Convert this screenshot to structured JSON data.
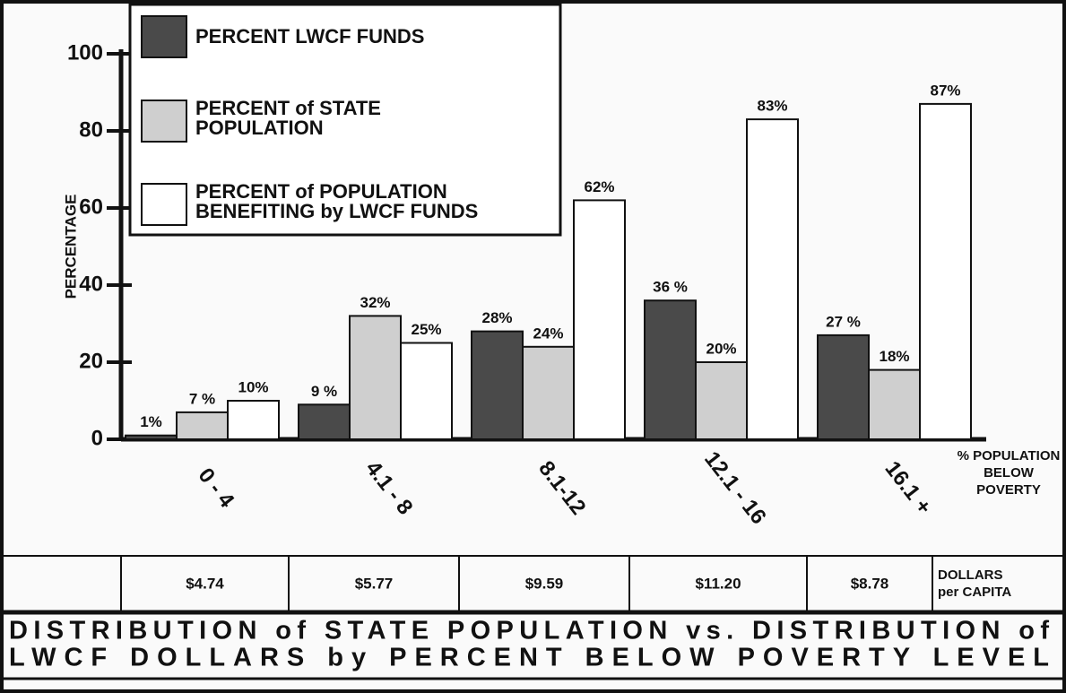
{
  "chart_data": {
    "type": "bar",
    "title": [
      "DISTRIBUTION of STATE POPULATION vs. DISTRIBUTION of",
      "LWCF DOLLARS by PERCENT BELOW POVERTY LEVEL"
    ],
    "y_label": "PERCENTAGE",
    "x_label": [
      "% POPULATION",
      "BELOW",
      "POVERTY"
    ],
    "categories": [
      "0 - 4",
      "4.1 - 8",
      "8.1-12",
      "12.1 - 16",
      "16.1 +"
    ],
    "series": [
      {
        "name": "PERCENT LWCF FUNDS",
        "color": "#4a4a4a",
        "values": [
          1,
          9,
          28,
          36,
          27
        ],
        "value_labels": [
          "1%",
          "9 %",
          "28%",
          "36 %",
          "27 %"
        ]
      },
      {
        "name": [
          "PERCENT of STATE",
          "POPULATION"
        ],
        "color": "#cfcfcf",
        "values": [
          7,
          32,
          24,
          20,
          18
        ],
        "value_labels": [
          "7 %",
          "32%",
          "24%",
          "20%",
          "18%"
        ]
      },
      {
        "name": [
          "PERCENT of POPULATION",
          "BENEFITING by LWCF FUNDS"
        ],
        "color": "#ffffff",
        "values": [
          10,
          25,
          62,
          83,
          87
        ],
        "value_labels": [
          "10%",
          "25%",
          "62%",
          "83%",
          "87%"
        ]
      }
    ],
    "ylim": [
      0,
      100
    ],
    "yticks": [
      0,
      20,
      40,
      60,
      80,
      100
    ],
    "per_capita": {
      "label": [
        "DOLLARS",
        "per CAPITA"
      ],
      "values": [
        "$4.74",
        "$5.77",
        "$9.59",
        "$11.20",
        "$8.78"
      ]
    }
  }
}
